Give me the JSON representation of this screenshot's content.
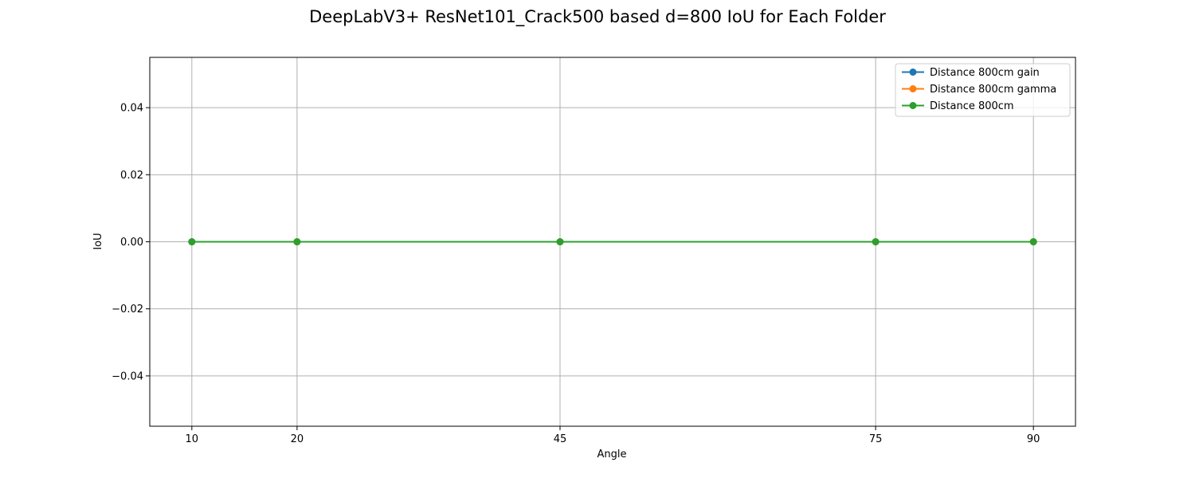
{
  "chart_data": {
    "type": "line",
    "title": "DeepLabV3+ ResNet101_Crack500 based d=800 IoU for Each Folder",
    "xlabel": "Angle",
    "ylabel": "IoU",
    "x": [
      10,
      20,
      45,
      75,
      90
    ],
    "x_tick_labels": [
      "10",
      "20",
      "45",
      "75",
      "90"
    ],
    "xlim": [
      6.0,
      94.0
    ],
    "ylim": [
      -0.055,
      0.055
    ],
    "y_ticks": [
      -0.04,
      -0.02,
      0.0,
      0.02,
      0.04
    ],
    "y_tick_labels": [
      "−0.04",
      "−0.02",
      "0.00",
      "0.02",
      "0.04"
    ],
    "grid": true,
    "legend_position": "top-right",
    "series": [
      {
        "name": "Distance 800cm gain",
        "color": "#1f77b4",
        "values": [
          0,
          0,
          0,
          0,
          0
        ]
      },
      {
        "name": "Distance 800cm gamma",
        "color": "#ff7f0e",
        "values": [
          0,
          0,
          0,
          0,
          0
        ]
      },
      {
        "name": "Distance 800cm",
        "color": "#2ca02c",
        "values": [
          0,
          0,
          0,
          0,
          0
        ]
      }
    ]
  }
}
